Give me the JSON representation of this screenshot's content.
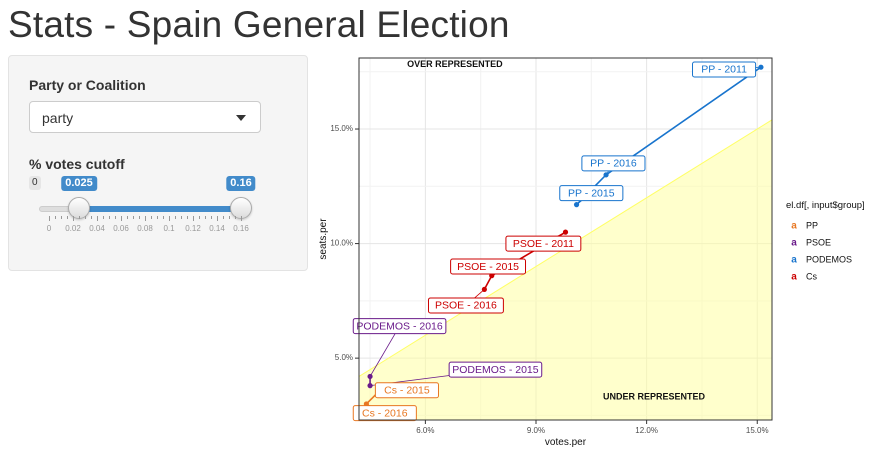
{
  "page_title": "Stats - Spain General Election",
  "sidebar": {
    "party_label": "Party or Coalition",
    "party_value": "party",
    "cutoff_label": "% votes cutoff",
    "slider": {
      "min": 0,
      "max": 0.16,
      "from": 0.025,
      "to": 0.16,
      "min_label": "0",
      "from_label": "0.025",
      "to_label": "0.16",
      "ticks": [
        "0",
        "0.02",
        "0.04",
        "0.06",
        "0.08",
        "0.1",
        "0.12",
        "0.14",
        "0.16"
      ]
    }
  },
  "chart_data": {
    "type": "scatter",
    "xlabel": "votes.per",
    "ylabel": "seats.per",
    "xlim": [
      4.2,
      15.4
    ],
    "ylim": [
      2.3,
      18.1
    ],
    "x_ticks": [
      6,
      9,
      12,
      15
    ],
    "x_tick_labels": [
      "6.0%",
      "9.0%",
      "12.0%",
      "15.0%"
    ],
    "y_ticks": [
      5,
      10,
      15
    ],
    "y_tick_labels": [
      "5.0%",
      "10.0%",
      "15.0%"
    ],
    "grid": true,
    "reference_line": {
      "slope": 1,
      "intercept": 0,
      "shade": "below",
      "color": "#ffff99",
      "line_color": "#ffff66"
    },
    "annotations": [
      {
        "text": "OVER REPRESENTED",
        "x": 6.8,
        "y": 17.8
      },
      {
        "text": "UNDER REPRESENTED",
        "x": 12.2,
        "y": 3.3
      }
    ],
    "legend": {
      "title": "el.df[, input$group]",
      "position": "right",
      "items": [
        {
          "name": "PP",
          "color": "#e87722"
        },
        {
          "name": "PSOE",
          "color": "#6a1b8a"
        },
        {
          "name": "PODEMOS",
          "color": "#1874cd"
        },
        {
          "name": "Cs",
          "color": "#cc0000"
        }
      ]
    },
    "series": [
      {
        "color": "#1874cd",
        "points": [
          {
            "x": 15.1,
            "y": 17.7,
            "label": "PP - 2011",
            "lx": 14.1,
            "ly": 17.6
          },
          {
            "x": 10.9,
            "y": 13.0,
            "label": "PP - 2016",
            "lx": 11.1,
            "ly": 13.5
          },
          {
            "x": 10.1,
            "y": 11.7,
            "label": "PP - 2015",
            "lx": 10.5,
            "ly": 12.2
          }
        ]
      },
      {
        "color": "#cc0000",
        "points": [
          {
            "x": 9.8,
            "y": 10.5,
            "label": "PSOE - 2011",
            "lx": 9.2,
            "ly": 10.0
          },
          {
            "x": 7.8,
            "y": 8.6,
            "label": "PSOE - 2015",
            "lx": 7.7,
            "ly": 9.0
          },
          {
            "x": 7.6,
            "y": 8.0,
            "label": "PSOE - 2016",
            "lx": 7.1,
            "ly": 7.3
          }
        ]
      },
      {
        "color": "#6a1b8a",
        "points": [
          {
            "x": 4.5,
            "y": 4.2,
            "label": "PODEMOS - 2016",
            "lx": 5.3,
            "ly": 6.4
          },
          {
            "x": 4.5,
            "y": 3.8,
            "label": "PODEMOS - 2015",
            "lx": 7.9,
            "ly": 4.5
          }
        ]
      },
      {
        "color": "#e87722",
        "points": [
          {
            "x": 4.9,
            "y": 3.8,
            "label": "Cs - 2015",
            "lx": 5.5,
            "ly": 3.6
          },
          {
            "x": 4.4,
            "y": 3.0,
            "label": "Cs - 2016",
            "lx": 4.9,
            "ly": 2.6
          }
        ]
      }
    ]
  }
}
